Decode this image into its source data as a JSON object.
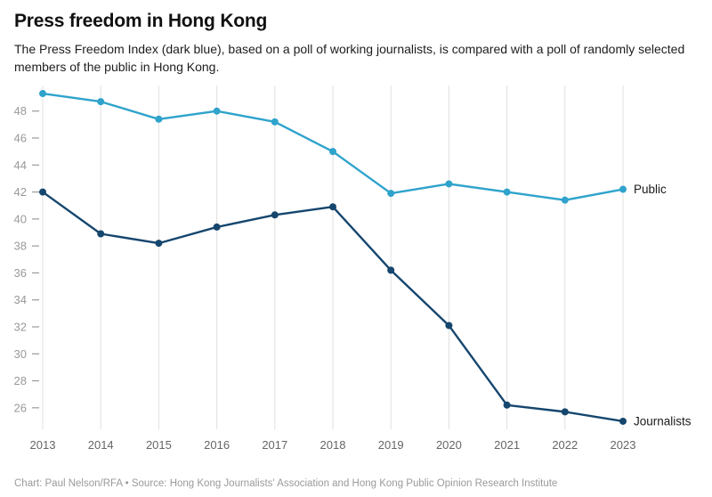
{
  "header": {
    "title": "Press freedom in Hong Kong",
    "subtitle": "The Press Freedom Index (dark blue), based on a poll of working journalists, is compared with a poll of randomly selected members of the public in Hong Kong."
  },
  "chart_data": {
    "type": "line",
    "title": "Press freedom in Hong Kong",
    "subtitle": "The Press Freedom Index (dark blue), based on a poll of working journalists, is compared with a poll of randomly selected members of the public in Hong Kong.",
    "x": [
      "2013",
      "2014",
      "2015",
      "2016",
      "2017",
      "2018",
      "2019",
      "2020",
      "2021",
      "2022",
      "2023"
    ],
    "series": [
      {
        "name": "Public",
        "color": "#2fa3cc",
        "values": [
          49.3,
          48.7,
          47.4,
          48.0,
          47.2,
          45.0,
          41.9,
          42.6,
          42.0,
          41.4,
          42.2
        ]
      },
      {
        "name": "Journalists",
        "color": "#15466e",
        "values": [
          42.0,
          38.9,
          38.2,
          39.4,
          40.3,
          40.9,
          36.2,
          32.1,
          26.2,
          25.7,
          25.0
        ]
      }
    ],
    "xlabel": "",
    "ylabel": "",
    "ylim": [
      24.8,
      49.5
    ],
    "yticks": [
      26,
      28,
      30,
      32,
      34,
      36,
      38,
      40,
      42,
      44,
      46,
      48
    ],
    "grid": "vertical-only",
    "legend_position": "end-of-line-labels",
    "colors": {
      "grid": "#e0e0e0",
      "y_tick_text": "#999999",
      "x_tick_text": "#666666",
      "end_label_text": "#1a1a1a"
    }
  },
  "footer": {
    "credit": "Chart: Paul Nelson/RFA • Source: Hong Kong Journalists' Association and Hong Kong Public Opinion Research Institute"
  }
}
